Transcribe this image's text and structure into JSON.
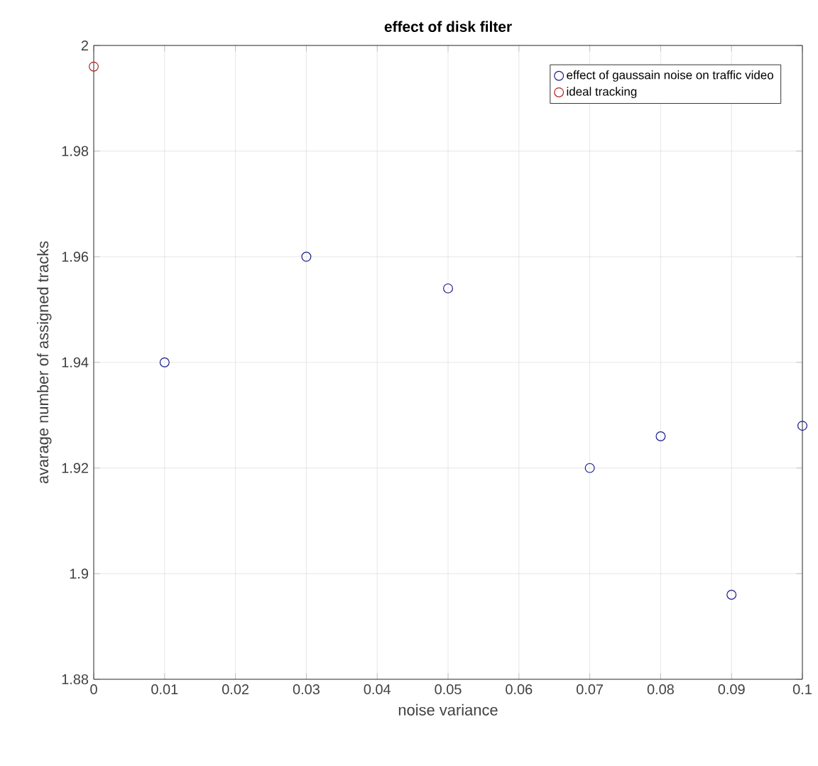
{
  "chart_data": {
    "type": "scatter",
    "title": "effect of disk filter",
    "xlabel": "noise variance",
    "ylabel": "avarage number of assigned tracks",
    "xlim": [
      0,
      0.1
    ],
    "ylim": [
      1.88,
      2
    ],
    "xticks": [
      0,
      0.01,
      0.02,
      0.03,
      0.04,
      0.05,
      0.06,
      0.07,
      0.08,
      0.09,
      0.1
    ],
    "yticks": [
      1.88,
      1.9,
      1.92,
      1.94,
      1.96,
      1.98,
      2
    ],
    "grid": true,
    "legend": "top right",
    "marker": "circle",
    "series": [
      {
        "name": "effect of gaussain noise on traffic video",
        "color": "#1c1c8c",
        "x": [
          0.01,
          0.03,
          0.05,
          0.07,
          0.08,
          0.09,
          0.1
        ],
        "values": [
          1.94,
          1.96,
          1.954,
          1.92,
          1.926,
          1.896,
          1.928
        ]
      },
      {
        "name": "ideal tracking",
        "color": "#b22222",
        "x": [
          0
        ],
        "values": [
          1.996
        ]
      }
    ]
  }
}
